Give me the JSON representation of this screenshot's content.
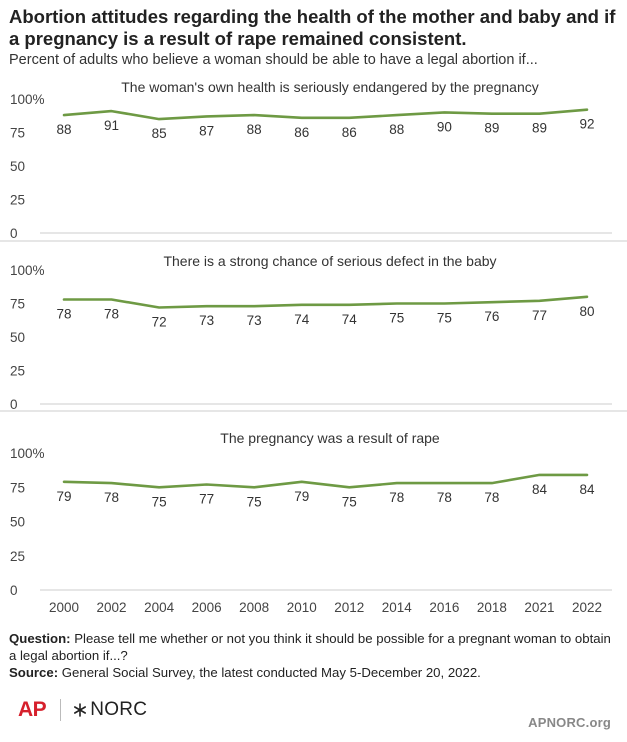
{
  "title": "Abortion attitudes regarding the health of the mother and baby and if a pregnancy is a result of rape remained consistent.",
  "subtitle": "Percent of adults who believe a woman should be able to have a legal abortion if...",
  "colors": {
    "line": "#6e9a44",
    "axis": "#cccccc",
    "separator": "#d8d8d8"
  },
  "chart_data": {
    "type": "line",
    "x": [
      "2000",
      "2002",
      "2004",
      "2006",
      "2008",
      "2010",
      "2012",
      "2014",
      "2016",
      "2018",
      "2021",
      "2022"
    ],
    "y_tick_labels": [
      "100%",
      "75",
      "50",
      "25",
      "0"
    ],
    "ylim": [
      0,
      100
    ],
    "grid": false,
    "panels": [
      {
        "title": "The woman's own health is seriously endangered by the pregnancy",
        "values": [
          88,
          91,
          85,
          87,
          88,
          86,
          86,
          88,
          90,
          89,
          89,
          92
        ]
      },
      {
        "title": "There is a strong chance of serious defect in the baby",
        "values": [
          78,
          78,
          72,
          73,
          73,
          74,
          74,
          75,
          75,
          76,
          77,
          80
        ]
      },
      {
        "title": "The pregnancy was a result of rape",
        "values": [
          79,
          78,
          75,
          77,
          75,
          79,
          75,
          78,
          78,
          78,
          84,
          84
        ]
      }
    ]
  },
  "footer": {
    "question_label": "Question:",
    "question_text": "Please tell me whether or not you think it should be possible for a pregnant woman to obtain a legal abortion if...?",
    "source_label": "Source:",
    "source_text": "General Social Survey, the latest conducted May 5-December 20, 2022."
  },
  "brand": {
    "ap": "AP",
    "norc": "NORC",
    "site": "APNORC.org"
  }
}
